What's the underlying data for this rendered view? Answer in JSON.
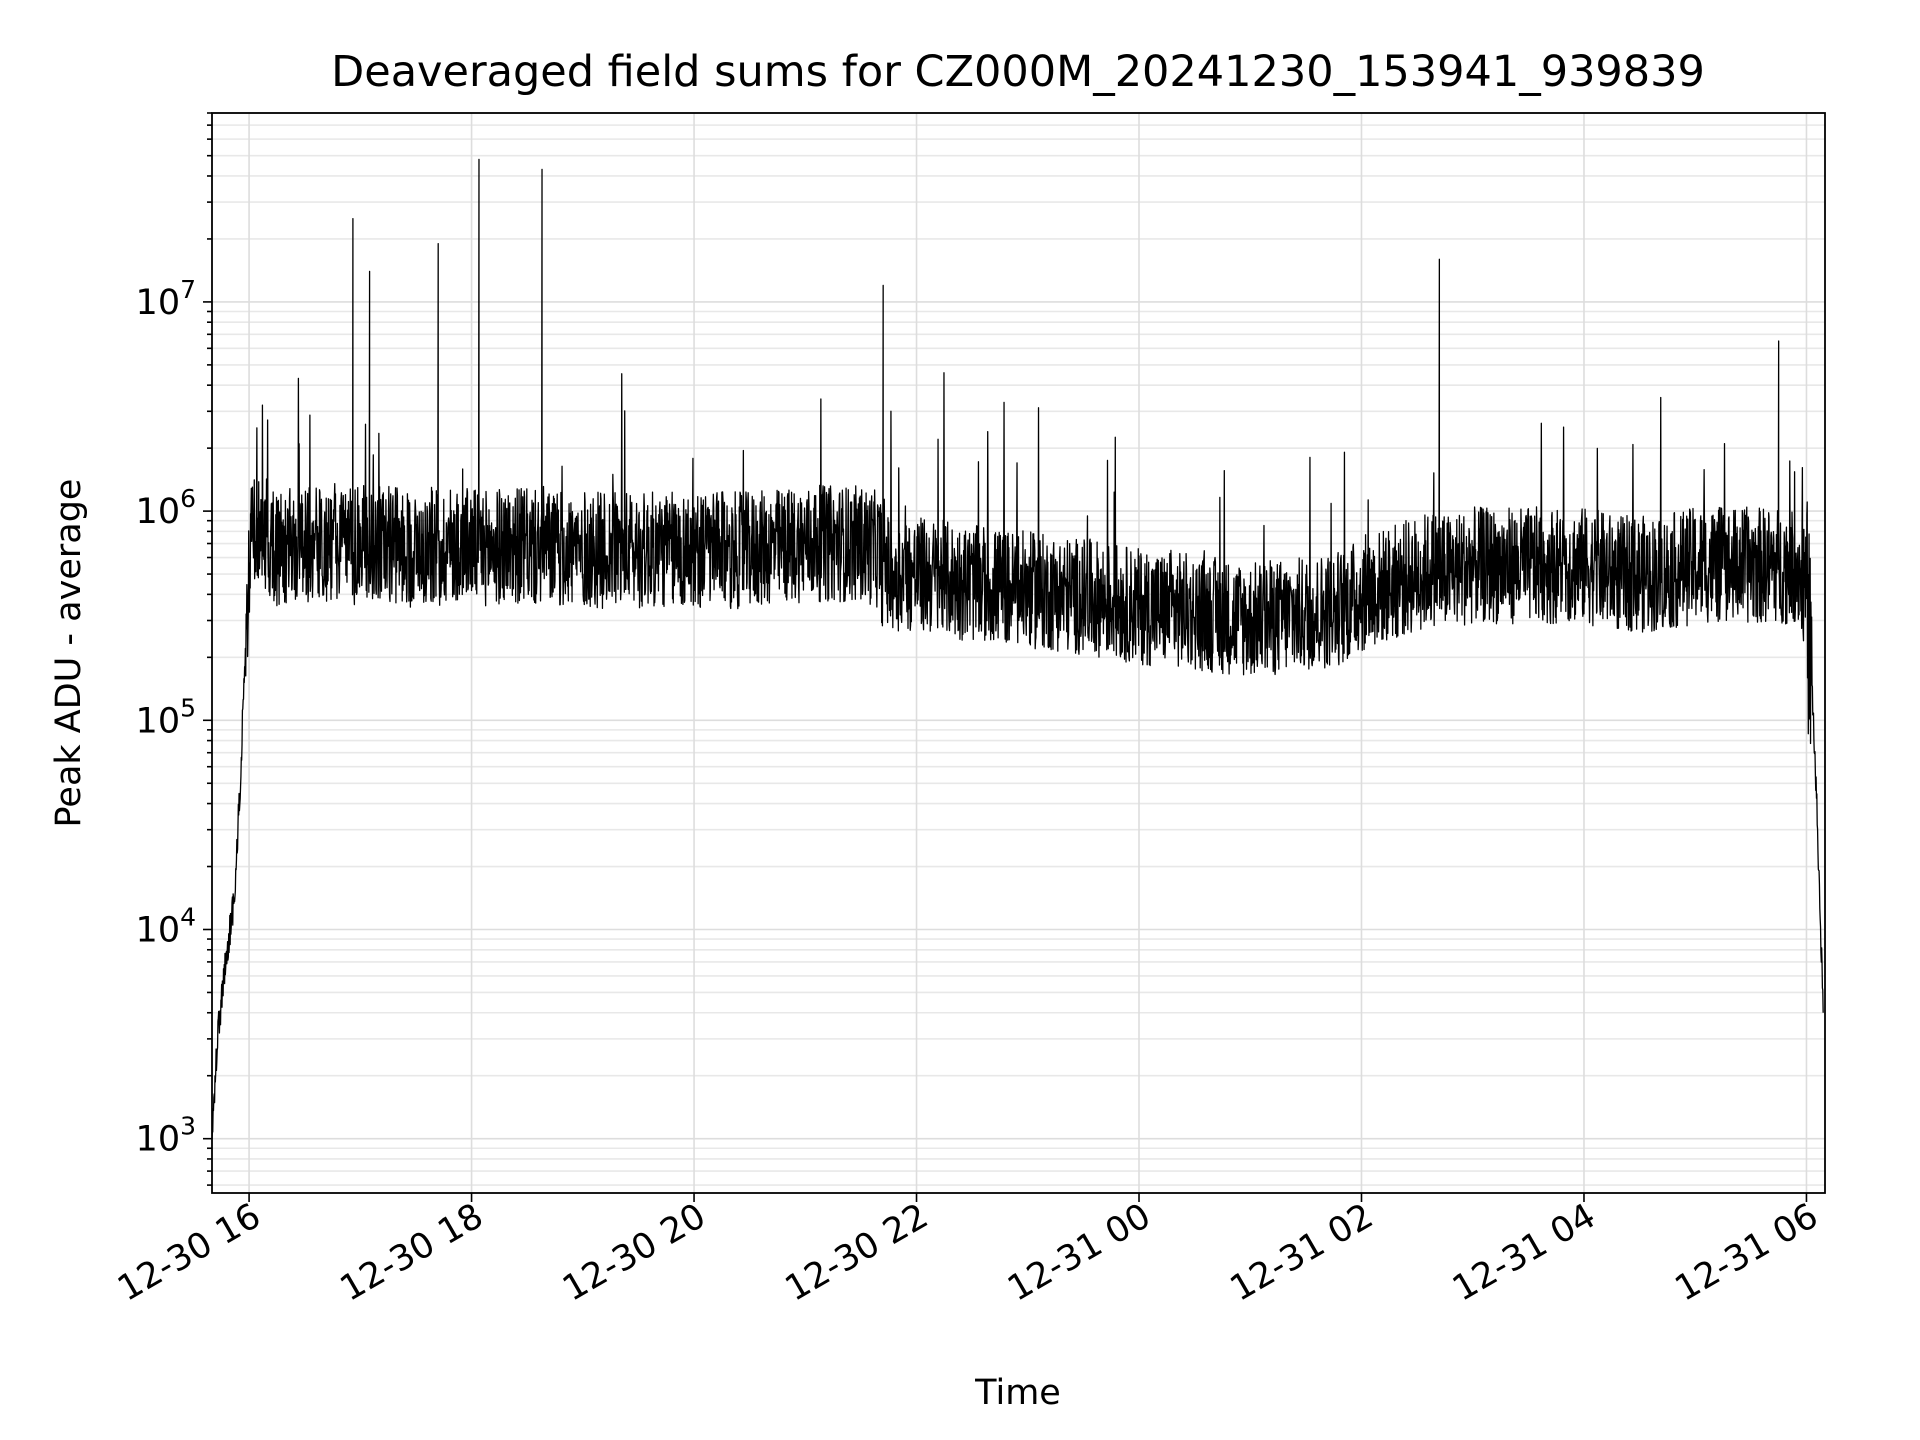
{
  "chart_data": {
    "type": "line",
    "title": "Deaveraged field sums for CZ000M_20241230_153941_939839",
    "xlabel": "Time",
    "ylabel": "Peak ADU - average",
    "x_axis": {
      "type": "time",
      "range": [
        "2024-12-30 15:40",
        "2024-12-31 06:10"
      ],
      "ticks": [
        {
          "value": "2024-12-30 16:00",
          "label": "12-30 16"
        },
        {
          "value": "2024-12-30 18:00",
          "label": "12-30 18"
        },
        {
          "value": "2024-12-30 20:00",
          "label": "12-30 20"
        },
        {
          "value": "2024-12-30 22:00",
          "label": "12-30 22"
        },
        {
          "value": "2024-12-31 00:00",
          "label": "12-31 00"
        },
        {
          "value": "2024-12-31 02:00",
          "label": "12-31 02"
        },
        {
          "value": "2024-12-31 04:00",
          "label": "12-31 04"
        },
        {
          "value": "2024-12-31 06:00",
          "label": "12-31 06"
        }
      ],
      "tick_rotation": 30
    },
    "y_axis": {
      "scale": "log",
      "range": [
        550,
        80000000
      ],
      "ticks": [
        {
          "value": 1000,
          "base": "10",
          "exp": "3"
        },
        {
          "value": 10000,
          "base": "10",
          "exp": "4"
        },
        {
          "value": 100000,
          "base": "10",
          "exp": "5"
        },
        {
          "value": 1000000,
          "base": "10",
          "exp": "6"
        },
        {
          "value": 10000000,
          "base": "10",
          "exp": "7"
        }
      ]
    },
    "grid": true,
    "grid_minor": true,
    "line_color": "#000000",
    "series": [
      {
        "x": [
          "2024-12-30 15:40",
          "2024-12-30 15:43",
          "2024-12-30 15:46",
          "2024-12-30 15:49",
          "2024-12-30 15:52",
          "2024-12-30 15:55",
          "2024-12-30 15:58",
          "2024-12-30 16:01",
          "2024-12-30 16:05",
          "2024-12-30 16:10",
          "2024-12-30 16:15",
          "2024-12-30 16:30",
          "2024-12-30 16:45",
          "2024-12-30 16:56",
          "2024-12-30 17:00",
          "2024-12-30 17:05",
          "2024-12-30 17:15",
          "2024-12-30 17:30",
          "2024-12-30 17:42",
          "2024-12-30 17:48",
          "2024-12-30 18:00",
          "2024-12-30 18:04",
          "2024-12-30 18:10",
          "2024-12-30 18:20",
          "2024-12-30 18:38",
          "2024-12-30 18:45",
          "2024-12-30 19:00",
          "2024-12-30 19:30",
          "2024-12-30 20:00",
          "2024-12-30 20:30",
          "2024-12-30 21:00",
          "2024-12-30 21:30",
          "2024-12-30 21:40",
          "2024-12-30 21:42",
          "2024-12-30 21:45",
          "2024-12-30 22:00",
          "2024-12-30 22:30",
          "2024-12-30 23:00",
          "2024-12-30 23:20",
          "2024-12-30 23:40",
          "2024-12-31 00:00",
          "2024-12-31 00:30",
          "2024-12-31 01:00",
          "2024-12-31 01:30",
          "2024-12-31 01:50",
          "2024-12-31 02:00",
          "2024-12-31 02:30",
          "2024-12-31 02:42",
          "2024-12-31 03:00",
          "2024-12-31 03:30",
          "2024-12-31 04:00",
          "2024-12-31 04:20",
          "2024-12-31 04:40",
          "2024-12-31 05:00",
          "2024-12-31 05:30",
          "2024-12-31 05:45",
          "2024-12-31 05:55",
          "2024-12-31 06:00",
          "2024-12-31 06:03",
          "2024-12-31 06:06",
          "2024-12-31 06:09"
        ],
        "y": [
          1000,
          3000,
          5500,
          9000,
          14000,
          45000,
          220000,
          700000,
          800000,
          750000,
          650000,
          700000,
          650000,
          25000000,
          700000,
          14000000,
          700000,
          650000,
          19000000,
          700000,
          700000,
          48000000,
          650000,
          700000,
          43000000,
          650000,
          650000,
          650000,
          650000,
          650000,
          700000,
          700000,
          650000,
          12000000,
          500000,
          500000,
          450000,
          420000,
          400000,
          380000,
          350000,
          330000,
          300000,
          320000,
          350000,
          400000,
          500000,
          16000000,
          550000,
          550000,
          550000,
          500000,
          500000,
          550000,
          550000,
          6500000,
          550000,
          400000,
          150000,
          30000,
          4000
        ]
      }
    ]
  }
}
